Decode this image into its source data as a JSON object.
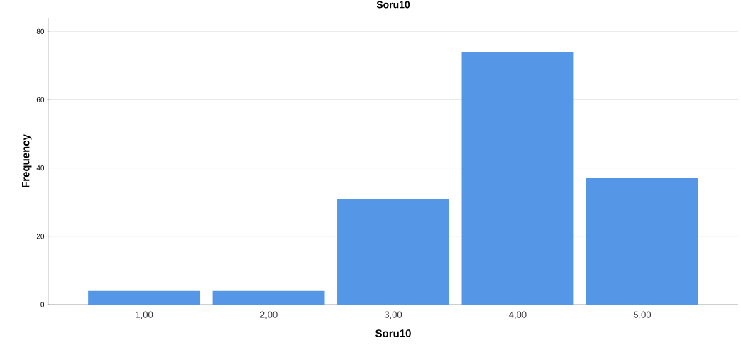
{
  "chart_data": {
    "type": "bar",
    "title": "Soru10",
    "xlabel": "Soru10",
    "ylabel": "Frequency",
    "categories": [
      "1,00",
      "2,00",
      "3,00",
      "4,00",
      "5,00"
    ],
    "values": [
      4,
      4,
      31,
      74,
      37
    ],
    "color": "#5596e6",
    "ylim": [
      0,
      84
    ],
    "yticks": [
      0,
      20,
      40,
      60,
      80
    ],
    "grid": "y"
  }
}
